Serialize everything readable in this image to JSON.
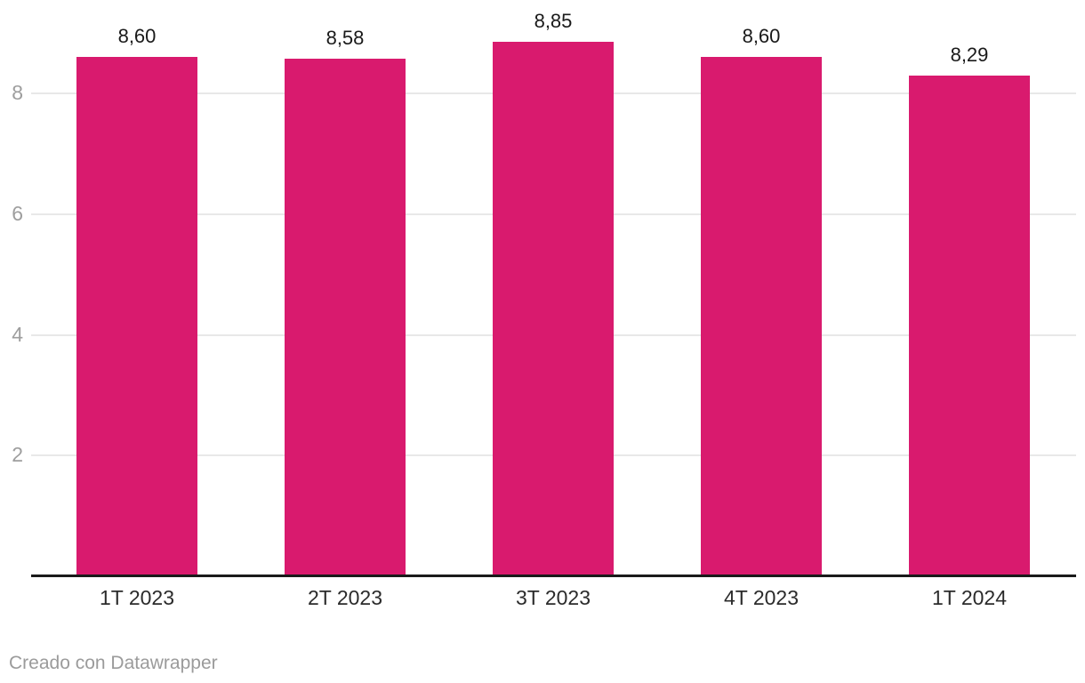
{
  "chart_data": {
    "type": "bar",
    "categories": [
      "1T 2023",
      "2T 2023",
      "3T 2023",
      "4T 2023",
      "1T 2024"
    ],
    "values": [
      8.6,
      8.58,
      8.85,
      8.6,
      8.29
    ],
    "value_labels": [
      "8,60",
      "8,58",
      "8,85",
      "8,60",
      "8,29"
    ],
    "title": "",
    "xlabel": "",
    "ylabel": "",
    "ylim": [
      0,
      9
    ],
    "yticks": [
      2,
      4,
      6,
      8
    ],
    "grid": true,
    "legend": "none",
    "colors": {
      "bar": "#d91a6e",
      "gridline": "#e8e8e8",
      "axis_line": "#1a1a1a",
      "y_tick_label": "#9e9e9e",
      "value_label": "#1a1a1a",
      "x_label": "#2b2b2b",
      "footer": "#9b9b9b"
    }
  },
  "footer": {
    "credit": "Creado con Datawrapper"
  }
}
